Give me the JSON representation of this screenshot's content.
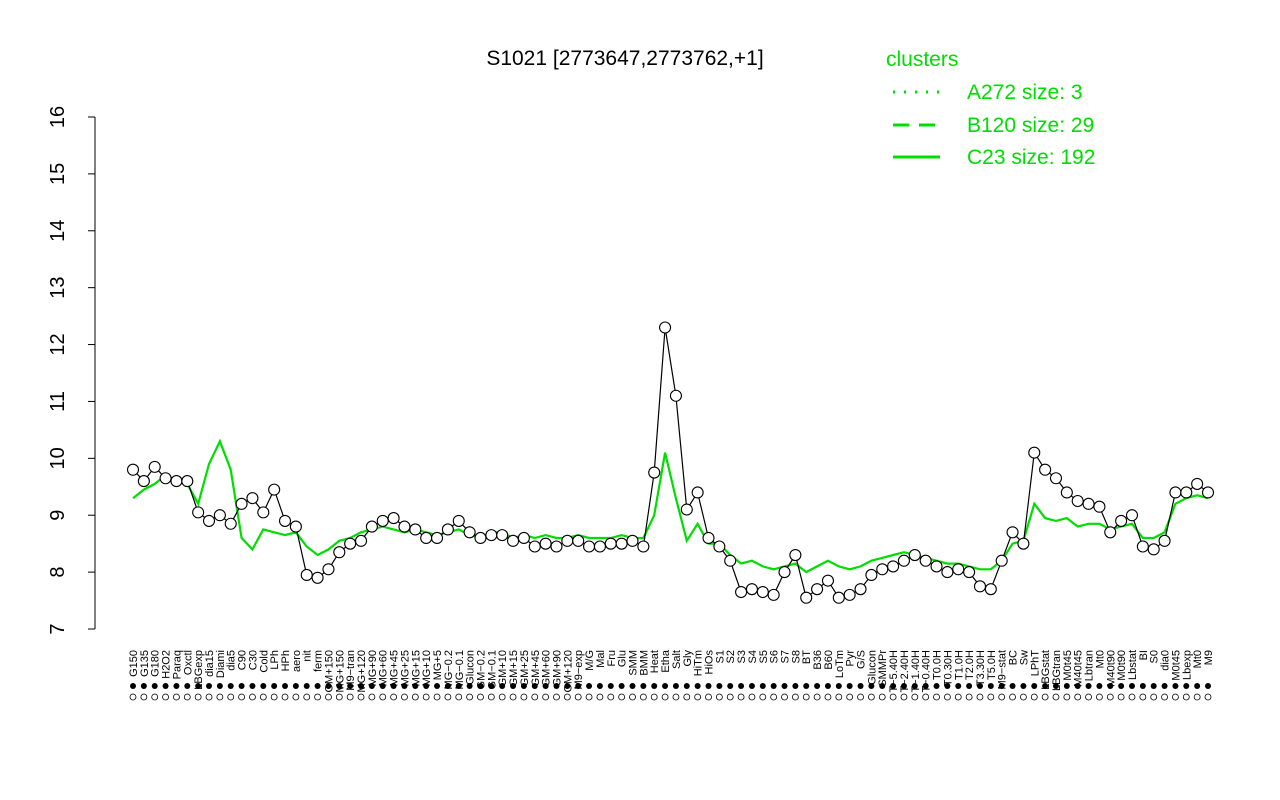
{
  "chart_data": {
    "type": "line",
    "title": "S1021 [2773647,2773762,+1]",
    "xlabel": "",
    "ylabel": "",
    "ylim": [
      7,
      16
    ],
    "yticks": [
      7,
      8,
      9,
      10,
      11,
      12,
      13,
      14,
      15,
      16
    ],
    "grid": false,
    "legend": {
      "title": "clusters",
      "placement": "top-right",
      "color": "#00dd00",
      "entries": [
        {
          "label": "A272 size: 3",
          "style": "dotted"
        },
        {
          "label": "B120 size: 29",
          "style": "dashed"
        },
        {
          "label": "C23 size: 192",
          "style": "solid"
        }
      ]
    },
    "x_tick_labels": [
      "G150",
      "G135",
      "G180",
      "H2O2",
      "Paraq",
      "Oxctl",
      "LBGexp",
      "dia15",
      "Diami",
      "dia5",
      "C90",
      "C30",
      "Cold",
      "LPh",
      "HPh",
      "aero",
      "nit",
      "ferm",
      "GM+150",
      "MG+150",
      "M9−tran",
      "MG+120",
      "MG+90",
      "MG+60",
      "MG+45",
      "MG+25",
      "MG+15",
      "MG+10",
      "MG+5",
      "MG−0.2",
      "MG−0.1",
      "Glucon",
      "GM−0.2",
      "GM−0.1",
      "GM+10",
      "GM+15",
      "GM+25",
      "GM+45",
      "GM+60",
      "GM+90",
      "GM+120",
      "M9−exp",
      "M/G",
      "Mal",
      "Fru",
      "Glu",
      "SMM",
      "BMM",
      "Heat",
      "Etha",
      "Salt",
      "Gly",
      "HiTm",
      "HiOs",
      "S1",
      "S2",
      "S3",
      "S4",
      "S5",
      "S6",
      "S7",
      "S8",
      "BT",
      "B36",
      "B60",
      "LoTm",
      "Pyr",
      "G/S",
      "Glucon",
      "SMMPr",
      "T−5.40H",
      "T−2.40H",
      "T−1.40H",
      "T−0.40H",
      "T0.0H",
      "T0.30H",
      "T1.0H",
      "T2.0H",
      "T3.30H",
      "T5.0H",
      "M9−stat",
      "BC",
      "Sw",
      "LPhT",
      "LBGstat",
      "LBGtran",
      "M0t45",
      "M40t45",
      "Lbtran",
      "Mt0",
      "M40t90",
      "M0t90",
      "Lbstat",
      "BI",
      "S0",
      "dia0",
      "M0t45",
      "Lbexp",
      "Mt0",
      "M9"
    ],
    "series": [
      {
        "name": "",
        "style": "black line with open circles",
        "color": "#000000",
        "values": [
          9.8,
          9.6,
          9.85,
          9.65,
          9.6,
          9.6,
          9.05,
          8.9,
          9.0,
          8.85,
          9.2,
          9.3,
          9.05,
          9.45,
          8.9,
          8.8,
          7.95,
          7.9,
          8.05,
          8.35,
          8.5,
          8.55,
          8.8,
          8.9,
          8.95,
          8.8,
          8.75,
          8.6,
          8.6,
          8.75,
          8.9,
          8.7,
          8.6,
          8.65,
          8.65,
          8.55,
          8.6,
          8.45,
          8.5,
          8.45,
          8.55,
          8.55,
          8.45,
          8.45,
          8.5,
          8.5,
          8.55,
          8.45,
          9.75,
          12.3,
          11.1,
          9.1,
          9.4,
          8.6,
          8.45,
          8.2,
          7.65,
          7.7,
          7.65,
          7.6,
          8.0,
          8.3,
          7.55,
          7.7,
          7.85,
          7.55,
          7.6,
          7.7,
          7.95,
          8.05,
          8.1,
          8.2,
          8.3,
          8.2,
          8.1,
          8.0,
          8.05,
          8.0,
          7.75,
          7.7,
          8.2,
          8.7,
          8.5,
          10.1,
          9.8,
          9.65,
          9.4,
          9.25,
          9.2,
          9.15,
          8.7,
          8.9,
          9.0,
          8.45,
          8.4,
          8.55,
          9.4,
          9.4,
          9.55,
          9.4
        ]
      },
      {
        "name": "",
        "style": "green solid line",
        "color": "#00dd00",
        "values": [
          9.3,
          9.45,
          9.55,
          9.7,
          9.6,
          9.55,
          9.2,
          9.9,
          10.3,
          9.8,
          8.6,
          8.4,
          8.75,
          8.7,
          8.65,
          8.7,
          8.45,
          8.3,
          8.4,
          8.55,
          8.6,
          8.7,
          8.75,
          8.8,
          8.75,
          8.7,
          8.75,
          8.7,
          8.65,
          8.7,
          8.75,
          8.65,
          8.6,
          8.7,
          8.7,
          8.6,
          8.65,
          8.6,
          8.65,
          8.6,
          8.6,
          8.65,
          8.6,
          8.6,
          8.6,
          8.65,
          8.6,
          8.6,
          9.0,
          10.1,
          9.3,
          8.55,
          8.85,
          8.5,
          8.5,
          8.3,
          8.15,
          8.2,
          8.1,
          8.05,
          8.1,
          8.15,
          8.0,
          8.1,
          8.2,
          8.1,
          8.05,
          8.1,
          8.2,
          8.25,
          8.3,
          8.35,
          8.3,
          8.25,
          8.2,
          8.15,
          8.15,
          8.1,
          8.05,
          8.05,
          8.2,
          8.5,
          8.55,
          9.2,
          8.95,
          8.9,
          8.95,
          8.8,
          8.85,
          8.85,
          8.75,
          8.8,
          8.85,
          8.6,
          8.6,
          8.7,
          9.2,
          9.3,
          9.35,
          9.3
        ]
      }
    ]
  }
}
